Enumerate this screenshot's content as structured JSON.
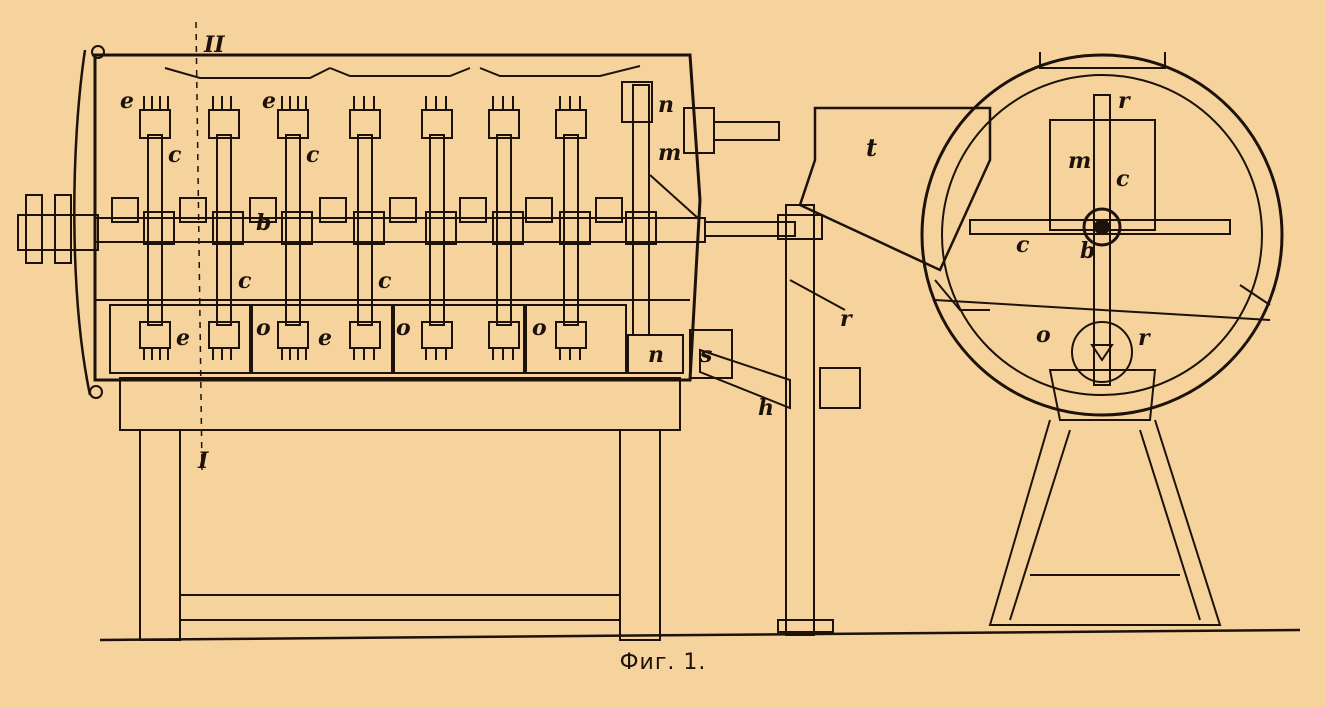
{
  "figure": {
    "background": "#f6d39c",
    "ink": "#1c120a",
    "caption": "Фиг. 1."
  },
  "side_view_labels": {
    "section_II": "II",
    "section_I": "I",
    "e": "e",
    "c": "c",
    "b": "b",
    "o": "o",
    "n": "n",
    "m": "m",
    "t": "t",
    "r": "r",
    "s": "s",
    "h": "h"
  },
  "end_view_labels": {
    "r": "r",
    "m": "m",
    "c": "c",
    "b": "b",
    "o": "o"
  }
}
